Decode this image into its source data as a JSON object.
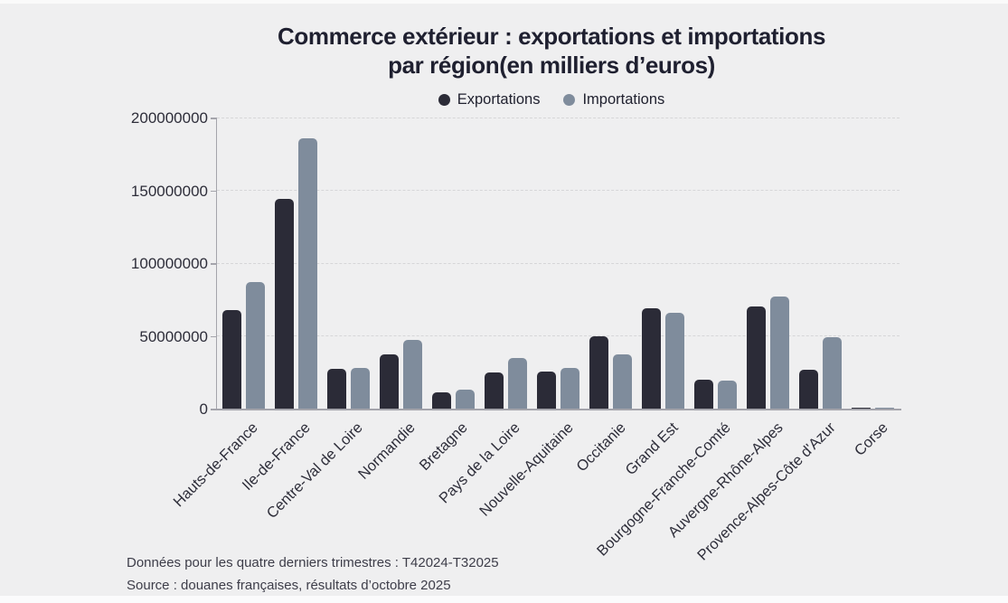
{
  "title": {
    "line1": "Commerce extérieur : exportations et importations",
    "line2": "par région(en milliers d’euros)"
  },
  "legend": [
    {
      "label": "Exportations",
      "color": "#2b2b37"
    },
    {
      "label": "Importations",
      "color": "#7f8c9c"
    }
  ],
  "chart_data": {
    "type": "bar",
    "title": "Commerce extérieur : exportations et importations par région(en milliers d’euros)",
    "categories": [
      "Hauts-de-France",
      "Ile-de-France",
      "Centre-Val de Loire",
      "Normandie",
      "Bretagne",
      "Pays de la Loire",
      "Nouvelle-Aquitaine",
      "Occitanie",
      "Grand Est",
      "Bourgogne-Franche-Comté",
      "Auvergne-Rhône-Alpes",
      "Provence-Alpes-Côte d'Azur",
      "Corse"
    ],
    "series": [
      {
        "name": "Exportations",
        "color": "#2b2b37",
        "values": [
          67500000,
          144000000,
          27500000,
          37500000,
          11200000,
          25000000,
          25500000,
          50000000,
          69000000,
          20000000,
          70000000,
          26500000,
          300000
        ]
      },
      {
        "name": "Importations",
        "color": "#7f8c9c",
        "values": [
          87000000,
          186000000,
          28000000,
          47500000,
          13000000,
          34500000,
          28000000,
          37000000,
          66000000,
          19000000,
          77000000,
          49000000,
          900000
        ]
      }
    ],
    "xlabel": "",
    "ylabel": "",
    "ylim": [
      0,
      200000000
    ],
    "yticks": [
      0,
      50000000,
      100000000,
      150000000,
      200000000
    ],
    "grid": "horizontal-dashed",
    "legend_position": "top",
    "x_label_rotation_deg": -45
  },
  "footer": {
    "line1": "Données pour les quatre derniers trimestres : T42024-T32025",
    "line2": "Source : douanes françaises, résultats d’octobre 2025"
  },
  "colors": {
    "background": "#efeff0",
    "export_bar": "#2b2b37",
    "import_bar": "#7f8c9c",
    "axis": "#a4a4ab",
    "gridline": "#d6d6d8",
    "title_text": "#1f2030",
    "axis_text": "#2e2e3a",
    "footer_text": "#3d3d49"
  }
}
